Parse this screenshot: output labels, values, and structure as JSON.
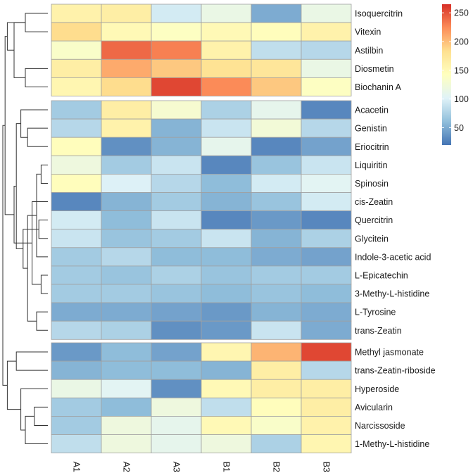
{
  "chart_data": {
    "type": "heatmap",
    "title": "",
    "columns": [
      "A1",
      "A2",
      "A3",
      "B1",
      "B2",
      "B3"
    ],
    "rows": [
      "Isoquercitrin",
      "Vitexin",
      "Astilbin",
      "Diosmetin",
      "Biochanin A",
      "Acacetin",
      "Genistin",
      "Eriocitrin",
      "Liquiritin",
      "Spinosin",
      "cis-Zeatin",
      "Quercitrin",
      "Glycitein",
      "Indole-3-acetic acid",
      "L-Epicatechin",
      "3-Methy-L-histidine",
      "L-Tyrosine",
      "trans-Zeatin",
      "Methyl jasmonate",
      "trans-Zeatin-riboside",
      "Hyperoside",
      "Avicularin",
      "Narcissoside",
      "1-Methy-L-histidine"
    ],
    "row_groups": [
      {
        "start": 0,
        "end": 4
      },
      {
        "start": 5,
        "end": 17
      },
      {
        "start": 18,
        "end": 23
      }
    ],
    "values": [
      [
        160,
        165,
        95,
        115,
        50,
        115
      ],
      [
        185,
        150,
        140,
        150,
        145,
        160
      ],
      [
        135,
        240,
        230,
        160,
        85,
        80
      ],
      [
        165,
        210,
        195,
        180,
        175,
        115
      ],
      [
        155,
        185,
        255,
        225,
        195,
        140
      ],
      [
        70,
        165,
        130,
        75,
        110,
        30
      ],
      [
        80,
        160,
        55,
        90,
        125,
        80
      ],
      [
        145,
        35,
        55,
        110,
        30,
        45
      ],
      [
        120,
        70,
        90,
        30,
        65,
        90
      ],
      [
        145,
        100,
        80,
        60,
        95,
        105
      ],
      [
        30,
        55,
        70,
        55,
        65,
        95
      ],
      [
        95,
        60,
        90,
        30,
        40,
        30
      ],
      [
        90,
        65,
        70,
        90,
        55,
        75
      ],
      [
        70,
        80,
        60,
        60,
        50,
        45
      ],
      [
        70,
        65,
        75,
        65,
        70,
        70
      ],
      [
        70,
        70,
        65,
        60,
        65,
        60
      ],
      [
        50,
        50,
        45,
        40,
        55,
        50
      ],
      [
        80,
        75,
        35,
        40,
        90,
        50
      ],
      [
        40,
        60,
        45,
        155,
        205,
        255
      ],
      [
        55,
        60,
        60,
        55,
        165,
        80
      ],
      [
        115,
        105,
        35,
        150,
        165,
        165
      ],
      [
        70,
        60,
        120,
        85,
        145,
        165
      ],
      [
        70,
        120,
        110,
        150,
        135,
        160
      ],
      [
        85,
        120,
        110,
        120,
        75,
        155
      ]
    ],
    "colorbar": {
      "min": 20,
      "max": 265,
      "ticks": [
        50,
        100,
        150,
        200,
        250
      ],
      "tick_labels": [
        "50",
        "100",
        "150",
        "200",
        "250"
      ],
      "colors": [
        "#4575b4",
        "#91bfdb",
        "#e0f3f8",
        "#ffffbf",
        "#fee090",
        "#fc8d59",
        "#d73027"
      ]
    },
    "dendrogram": {
      "leaf_order": [
        0,
        1,
        2,
        3,
        4,
        5,
        6,
        7,
        8,
        9,
        10,
        11,
        12,
        13,
        14,
        15,
        16,
        17,
        18,
        19,
        20,
        21,
        22,
        23
      ],
      "merges": [
        [
          0,
          1,
          0.5
        ],
        [
          3,
          4,
          0.5
        ],
        [
          -2,
          -1,
          0.75
        ],
        [
          24,
          26,
          0.9
        ],
        [
          8,
          9,
          0.15
        ],
        [
          14,
          15,
          0.15
        ],
        [
          11,
          12,
          0.2
        ],
        [
          28,
          13,
          0.25
        ],
        [
          16,
          17,
          0.25
        ],
        [
          29,
          10,
          0.35
        ],
        [
          6,
          7,
          0.45
        ],
        [
          31,
          32,
          0.45
        ],
        [
          30,
          35,
          0.55
        ],
        [
          5,
          34,
          0.6
        ],
        [
          37,
          36,
          0.7
        ],
        [
          33,
          38,
          0.75
        ],
        [
          21,
          22,
          0.3
        ],
        [
          40,
          23,
          0.5
        ],
        [
          20,
          41,
          0.6
        ],
        [
          18,
          19,
          0.7
        ],
        [
          43,
          42,
          0.9
        ],
        [
          27,
          39,
          0.95
        ],
        [
          45,
          44,
          1.0
        ]
      ]
    }
  }
}
